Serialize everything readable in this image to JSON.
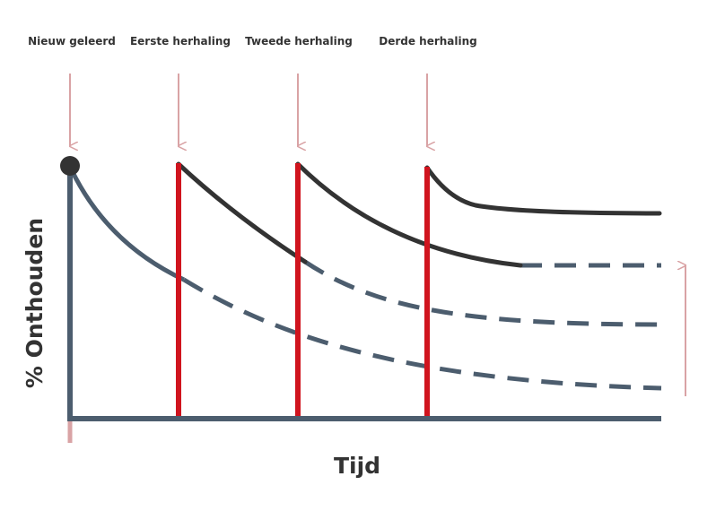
{
  "labels": [
    "Nieuw geleerd",
    "Eerste herhaling",
    "Tweede herhaling",
    "Derde herhaling"
  ],
  "y_axis_label": "% Onthouden",
  "x_axis_label": "Tijd"
}
